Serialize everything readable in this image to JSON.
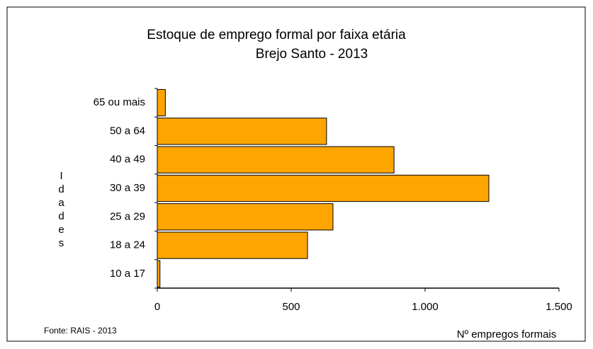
{
  "chart_data": {
    "type": "hbar",
    "title": "Estoque de emprego formal por faixa etária",
    "subtitle": "Brejo Santo - 2013",
    "categories": [
      "65 ou mais",
      "50 a 64",
      "40 a 49",
      "30 a 39",
      "25 a 29",
      "18 a 24",
      "10 a 17"
    ],
    "values": [
      30,
      632,
      884,
      1238,
      656,
      561,
      10
    ],
    "color": "#ffa500",
    "xlim": [
      0,
      1500
    ],
    "xticks": [
      0,
      500,
      {
        "value": 1000,
        "label": "1.000"
      },
      {
        "value": 1500,
        "label": "1.500"
      }
    ],
    "y_label": "Idades",
    "x_label": "Nº empregos formais",
    "source": "Fonte: RAIS - 2013"
  }
}
